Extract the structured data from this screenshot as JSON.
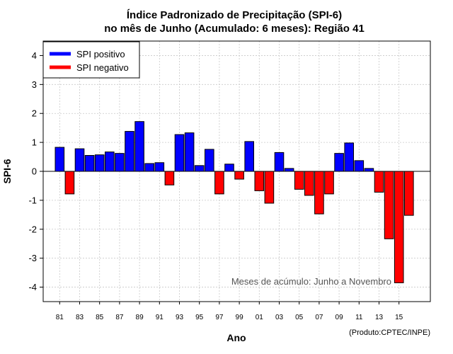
{
  "chart_data": {
    "type": "bar",
    "title": [
      "Índice Padronizado de Precipitação (SPI-6)",
      "no mês de Junho (Acumulado: 6 meses): Região 41"
    ],
    "xlabel": "Ano",
    "ylabel": "SPI-6",
    "ylim": [
      -4.5,
      4.5
    ],
    "yticks": [
      -4,
      -3,
      -2,
      -1,
      0,
      1,
      2,
      3,
      4
    ],
    "ytick_labels": [
      "-4",
      "-3",
      "-2",
      "-1",
      "0",
      "1",
      "2",
      "3",
      "4"
    ],
    "grid": true,
    "categories": [
      "81",
      "82",
      "83",
      "84",
      "85",
      "86",
      "87",
      "88",
      "89",
      "90",
      "91",
      "92",
      "93",
      "94",
      "95",
      "96",
      "97",
      "98",
      "99",
      "00",
      "01",
      "02",
      "03",
      "04",
      "05",
      "06",
      "07",
      "08",
      "09",
      "10",
      "11",
      "12",
      "13",
      "14",
      "15",
      "16"
    ],
    "xtick_labels": [
      "81",
      "83",
      "85",
      "87",
      "89",
      "91",
      "93",
      "95",
      "97",
      "99",
      "01",
      "03",
      "05",
      "07",
      "09",
      "11",
      "13",
      "15"
    ],
    "values": [
      0.83,
      -0.78,
      0.78,
      0.55,
      0.57,
      0.67,
      0.62,
      1.38,
      1.72,
      0.27,
      0.3,
      -0.47,
      1.27,
      1.33,
      0.2,
      0.76,
      -0.78,
      0.25,
      -0.27,
      1.03,
      -0.67,
      -1.1,
      0.65,
      0.1,
      -0.62,
      -0.83,
      -1.47,
      -0.78,
      0.62,
      0.98,
      0.37,
      0.1,
      -0.72,
      -2.33,
      -3.85,
      -1.52
    ],
    "colors": {
      "positive": "#0000ff",
      "negative": "#ff0000",
      "grid": "#c8c8c8"
    },
    "legend": {
      "position": "top-left",
      "entries": [
        {
          "label": "SPI positivo",
          "color": "#0000ff"
        },
        {
          "label": "SPI negativo",
          "color": "#ff0000"
        }
      ]
    },
    "annotation": "Meses de acúmulo: Junho a Novembro",
    "credit": "(Produto:CPTEC/INPE)"
  }
}
